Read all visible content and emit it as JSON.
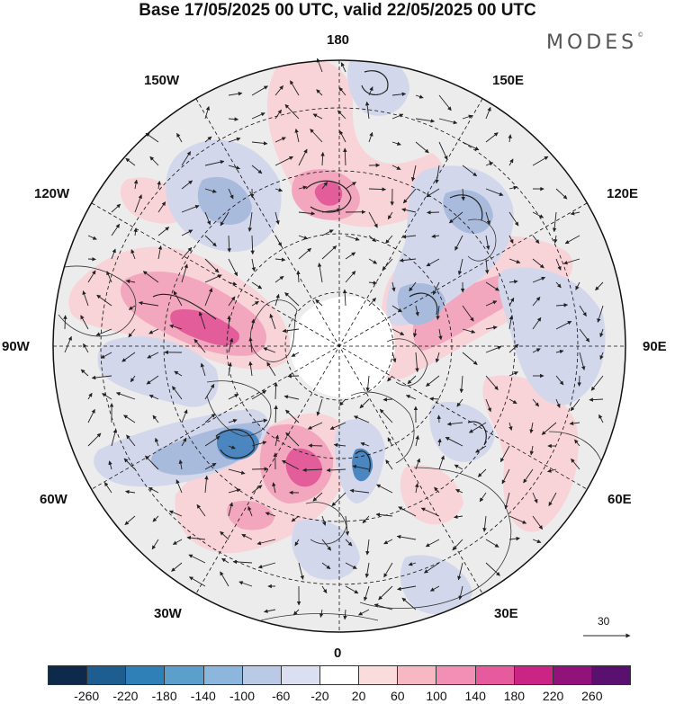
{
  "title": "Base 17/05/2025 00 UTC, valid 22/05/2025 00 UTC",
  "brand": "MODES",
  "brand_mark": "©",
  "longitude_labels": {
    "top": "180",
    "bottom": "0",
    "left": "90W",
    "right": "90E",
    "upper_left_1": "150W",
    "upper_left_2": "120W",
    "upper_right_1": "150E",
    "upper_right_2": "120E",
    "lower_left_1": "60W",
    "lower_left_2": "30W",
    "lower_right_1": "60E",
    "lower_right_2": "30E"
  },
  "reference_vector": {
    "value": "30"
  },
  "colorbar": {
    "colors": [
      "#0d2a4a",
      "#1d5d8f",
      "#2f7fb8",
      "#5c9fcd",
      "#8db6dc",
      "#b9c9e6",
      "#dcdff0",
      "#ffffff",
      "#fbdcdc",
      "#f6b9c4",
      "#f28fb5",
      "#e65a9e",
      "#cc2485",
      "#92127b",
      "#5a106e"
    ],
    "ticks": [
      "-260",
      "-220",
      "-180",
      "-140",
      "-100",
      "-60",
      "-20",
      "20",
      "60",
      "100",
      "140",
      "180",
      "220",
      "260"
    ]
  },
  "map_colors": {
    "neutral": "#ececec",
    "pos_weak": "#f8d3d8",
    "pos_mid": "#f2a7be",
    "pos_strong": "#e45d9b",
    "neg_weak": "#d3d7ec",
    "neg_mid": "#a9bbdd",
    "neg_strong": "#4c86c0"
  }
}
